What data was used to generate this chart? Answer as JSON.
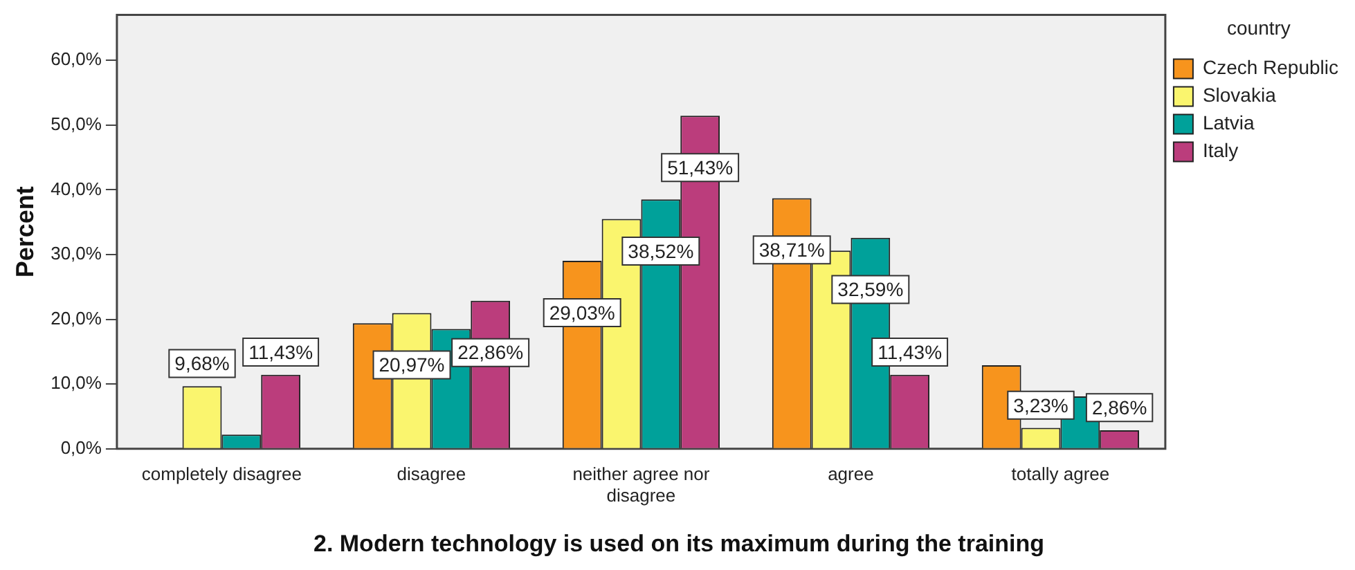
{
  "chart_data": {
    "type": "bar",
    "title": "2. Modern technology is used on its maximum during the training",
    "ylabel": "Percent",
    "legend_title": "country",
    "legend": "top right",
    "grid": false,
    "categories": [
      "completely disagree",
      "disagree",
      "neither agree nor disagree",
      "agree",
      "totally agree"
    ],
    "ylim": [
      0,
      67
    ],
    "yticks": [
      {
        "value": 0,
        "label": "0,0%"
      },
      {
        "value": 10,
        "label": "10,0%"
      },
      {
        "value": 20,
        "label": "20,0%"
      },
      {
        "value": 30,
        "label": "30,0%"
      },
      {
        "value": 40,
        "label": "40,0%"
      },
      {
        "value": 50,
        "label": "50,0%"
      },
      {
        "value": 60,
        "label": "60,0%"
      }
    ],
    "series": [
      {
        "name": "Czech Republic",
        "color": "#f7941d",
        "values": [
          0,
          19.4,
          29.03,
          38.71,
          12.9
        ],
        "value_labels": [
          null,
          null,
          "29,03%",
          "38,71%",
          null
        ]
      },
      {
        "name": "Slovakia",
        "color": "#faf56e",
        "values": [
          9.68,
          20.97,
          35.5,
          30.6,
          3.23
        ],
        "value_labels": [
          "9,68%",
          "20,97%",
          null,
          null,
          "3,23%"
        ]
      },
      {
        "name": "Latvia",
        "color": "#00a19a",
        "values": [
          2.2,
          18.5,
          38.52,
          32.59,
          8.1
        ],
        "value_labels": [
          null,
          null,
          "38,52%",
          "32,59%",
          null
        ]
      },
      {
        "name": "Italy",
        "color": "#bb3d7c",
        "values": [
          11.43,
          22.86,
          51.43,
          11.43,
          2.86
        ],
        "value_labels": [
          "11,43%",
          "22,86%",
          "51,43%",
          "11,43%",
          "2,86%"
        ]
      }
    ]
  }
}
